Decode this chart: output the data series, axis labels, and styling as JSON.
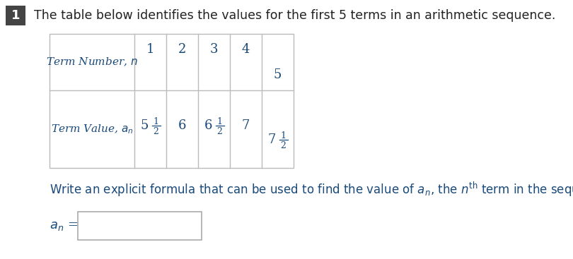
{
  "background_color": "#ffffff",
  "question_number": "1",
  "question_number_bg": "#444444",
  "question_text": "The table below identifies the values for the first 5 terms in an arithmetic sequence.",
  "question_text_color": "#222222",
  "question_font_size": 12.5,
  "row_labels": [
    "Term Number, $n$",
    "Term Value, $a_n$"
  ],
  "col_values_row1": [
    "1",
    "2",
    "3",
    "4",
    "5"
  ],
  "table_text_color": "#1a4a7a",
  "write_text_color": "#1a4a7a",
  "answer_label_color": "#1a4a7a",
  "box_fill": "#ffffff",
  "box_edge": "#aaaaaa"
}
